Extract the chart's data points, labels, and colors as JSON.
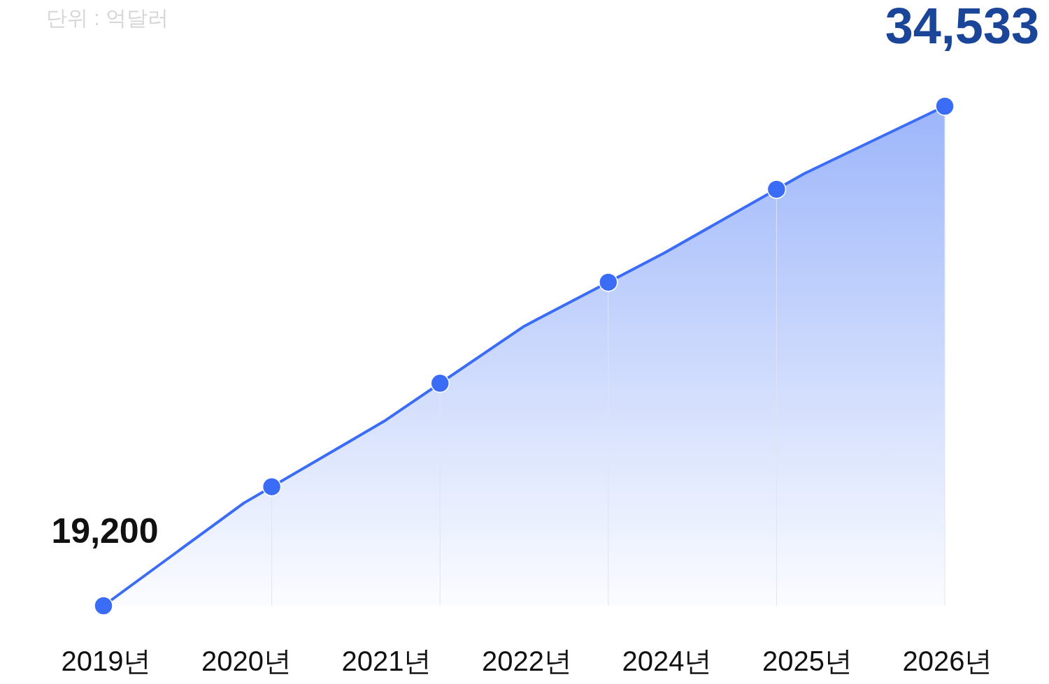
{
  "chart_data": {
    "type": "area",
    "annotations": [
      "단위 : 억달러"
    ],
    "categories": [
      "2019년",
      "2020년",
      "2021년",
      "2022년",
      "2024년",
      "2025년",
      "2026년"
    ],
    "series": [
      {
        "color": "#3a6cf6",
        "values": [
          19200,
          22350,
          24860,
          27780,
          30030,
          32470,
          34533
        ],
        "value_labels": [
          "19,200",
          null,
          null,
          null,
          null,
          null,
          "34,533"
        ]
      }
    ]
  }
}
